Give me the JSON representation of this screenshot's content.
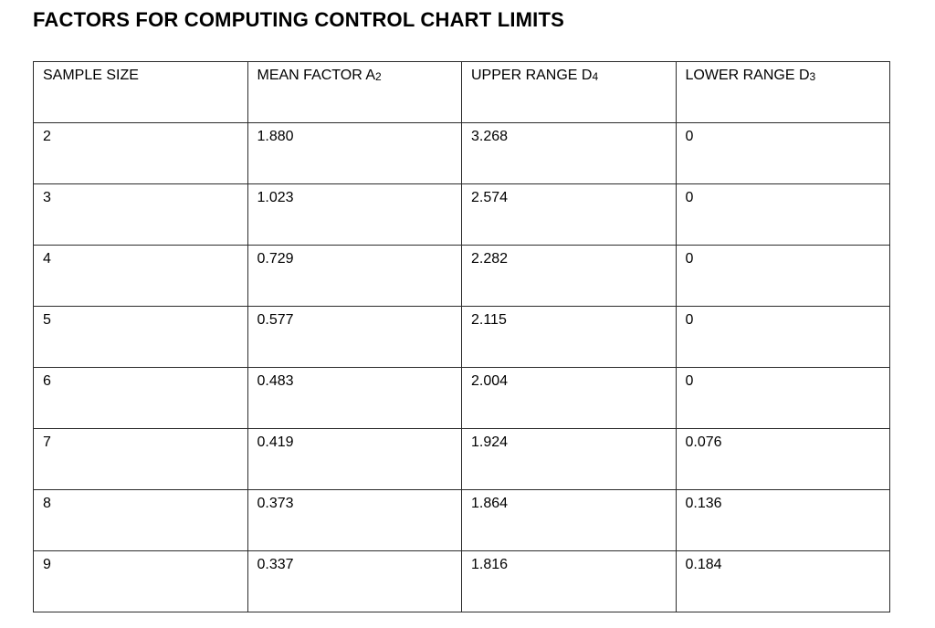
{
  "page_title": "FACTORS FOR COMPUTING CONTROL CHART LIMITS",
  "table": {
    "columns": [
      {
        "label": "SAMPLE SIZE",
        "sub": ""
      },
      {
        "label": "MEAN FACTOR A",
        "sub": "2"
      },
      {
        "label": "UPPER RANGE D",
        "sub": "4"
      },
      {
        "label": "LOWER RANGE D",
        "sub": "3"
      }
    ],
    "rows": [
      [
        "2",
        "1.880",
        "3.268",
        "0"
      ],
      [
        "3",
        "1.023",
        "2.574",
        "0"
      ],
      [
        "4",
        "0.729",
        "2.282",
        "0"
      ],
      [
        "5",
        "0.577",
        "2.115",
        "0"
      ],
      [
        "6",
        "0.483",
        "2.004",
        "0"
      ],
      [
        "7",
        "0.419",
        "1.924",
        "0.076"
      ],
      [
        "8",
        "0.373",
        "1.864",
        "0.136"
      ],
      [
        "9",
        "0.337",
        "1.816",
        "0.184"
      ]
    ]
  }
}
